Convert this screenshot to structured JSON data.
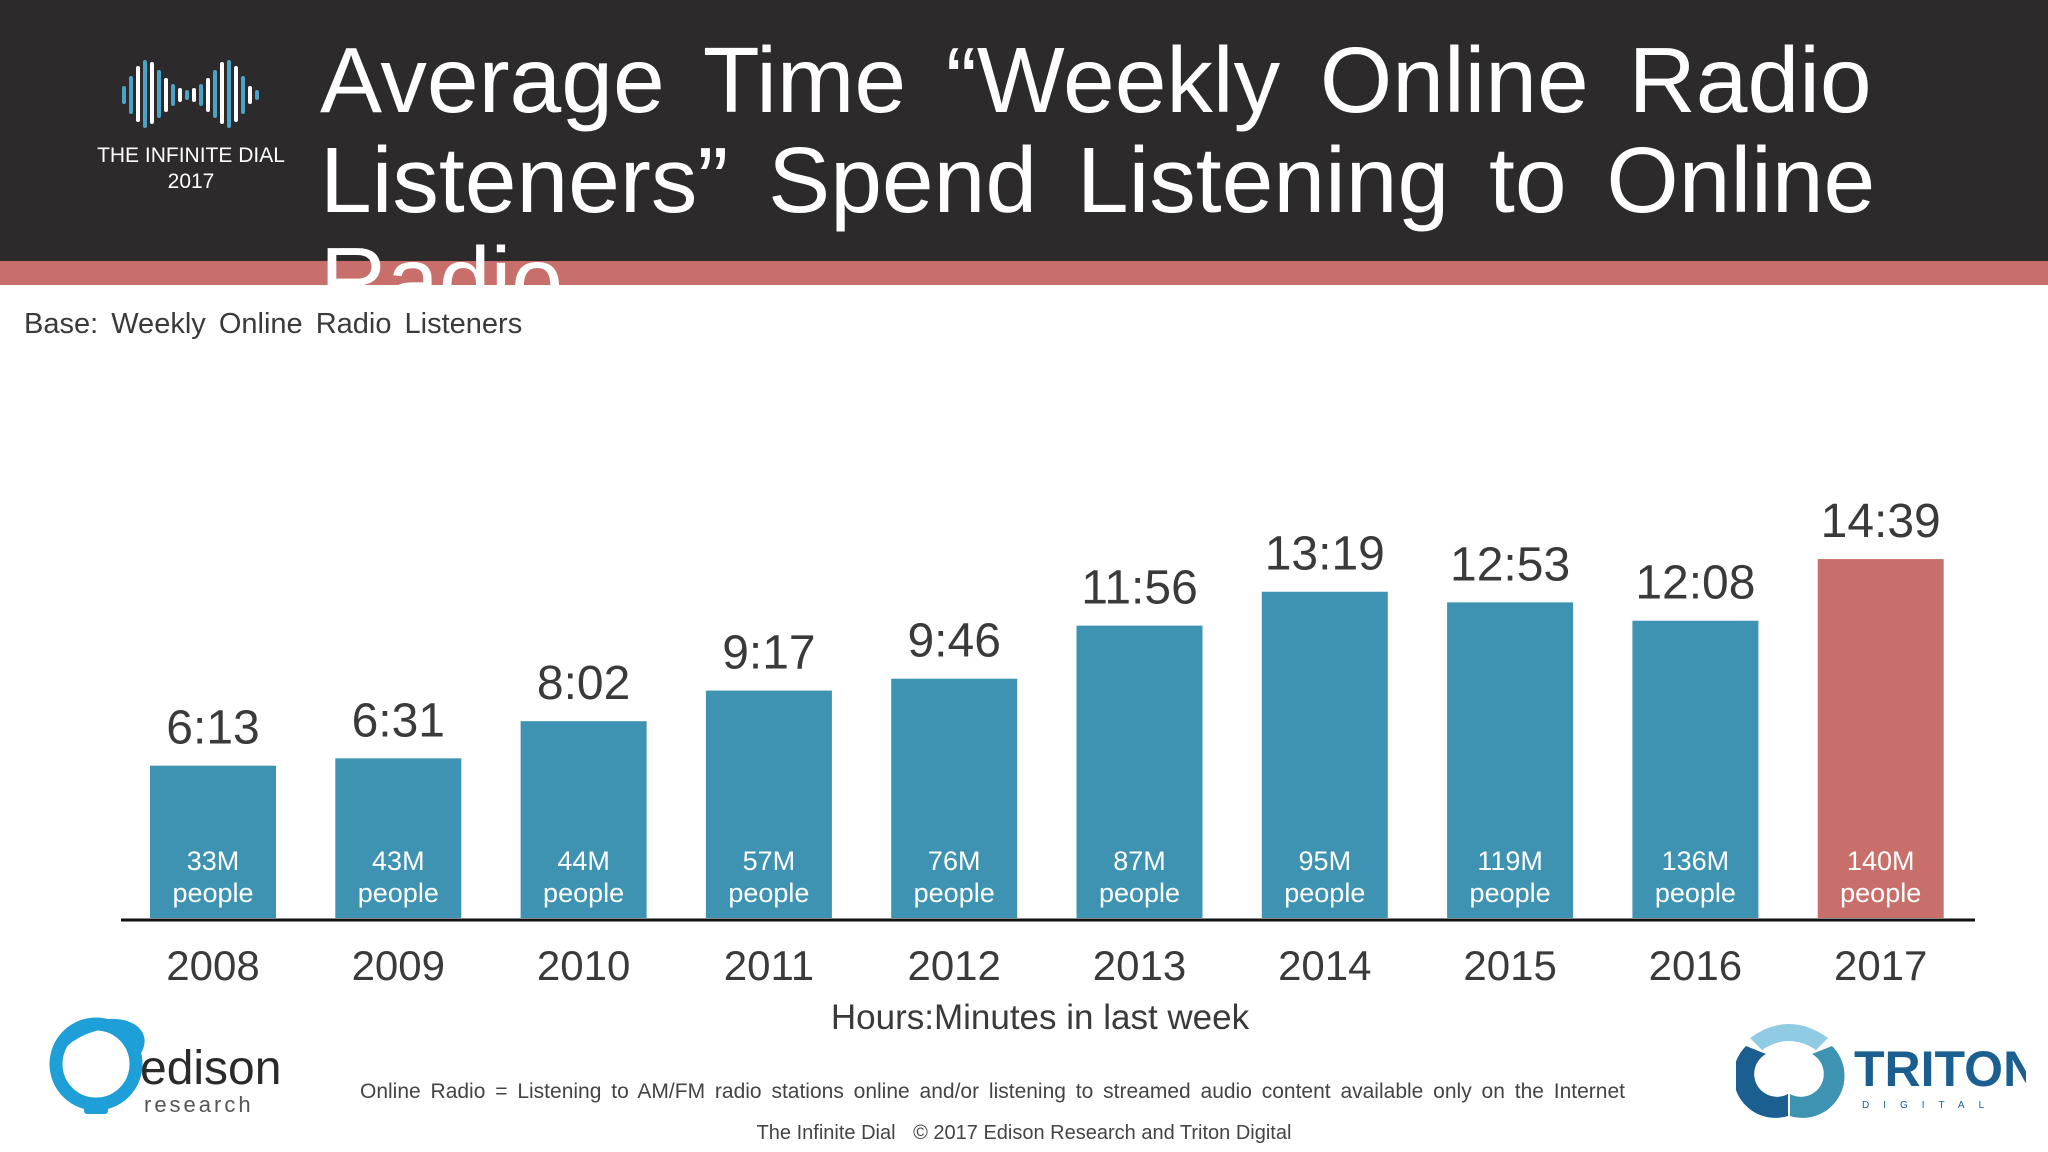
{
  "header": {
    "title": "Average Time “Weekly Online Radio Listeners” Spend Listening to Online Radio",
    "logo_name": "THE INFINITE DIAL",
    "logo_year": "2017",
    "background_color": "#2c2a2b",
    "accent_color": "#c96f6b"
  },
  "base_note": "Base: Weekly Online Radio Listeners",
  "chart_data": {
    "type": "bar",
    "title": "Average Time “Weekly Online Radio Listeners” Spend Listening to Online Radio",
    "xlabel": "Hours:Minutes in last week",
    "ylabel": "",
    "ylim": [
      0,
      16
    ],
    "grid": false,
    "categories": [
      "2008",
      "2009",
      "2010",
      "2011",
      "2012",
      "2013",
      "2014",
      "2015",
      "2016",
      "2017"
    ],
    "values": [
      6.217,
      6.517,
      8.033,
      9.283,
      9.767,
      11.933,
      13.317,
      12.883,
      12.133,
      14.65
    ],
    "value_labels": [
      "6:13",
      "6:31",
      "8:02",
      "9:17",
      "9:46",
      "11:56",
      "13:19",
      "12:53",
      "12:08",
      "14:39"
    ],
    "population_labels": [
      "33M",
      "43M",
      "44M",
      "57M",
      "76M",
      "87M",
      "95M",
      "119M",
      "136M",
      "140M"
    ],
    "population_unit": "people",
    "bar_color": "#3d93b1",
    "highlight_color": "#c96f6b",
    "highlight_index": 9
  },
  "notes": {
    "definition": "Online Radio = Listening to AM/FM radio stations online and/or listening to streamed audio content available only on the Internet",
    "footer_source": "The Infinite Dial",
    "footer_copyright": "© 2017 Edison Research and Triton Digital"
  },
  "logos": {
    "edison_name": "edison",
    "edison_sub": "research",
    "triton_name": "TRITON",
    "triton_sub": "DIGITAL",
    "edison_color": "#1e9fd8",
    "triton_color": "#1a5f8f"
  }
}
